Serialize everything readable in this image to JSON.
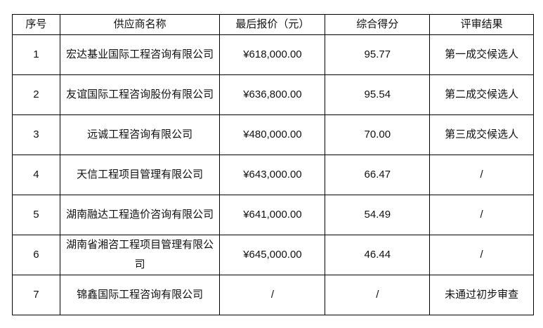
{
  "headers": [
    "序号",
    "供应商名称",
    "最后报价（元）",
    "综合得分",
    "评审结果"
  ],
  "rows": [
    {
      "no": "1",
      "name": "宏达基业国际工程咨询有限公司",
      "price": "¥618,000.00",
      "score": "95.77",
      "result": "第一成交候选人"
    },
    {
      "no": "2",
      "name": "友谊国际工程咨询股份有限公司",
      "price": "¥636,800.00",
      "score": "95.54",
      "result": "第二成交候选人"
    },
    {
      "no": "3",
      "name": "远诚工程咨询有限公司",
      "price": "¥480,000.00",
      "score": "70.00",
      "result": "第三成交候选人"
    },
    {
      "no": "4",
      "name": "天信工程项目管理有限公司",
      "price": "¥643,000.00",
      "score": "66.47",
      "result": "/"
    },
    {
      "no": "5",
      "name": "湖南融达工程造价咨询有限公司",
      "price": "¥641,000.00",
      "score": "54.49",
      "result": "/"
    },
    {
      "no": "6",
      "name": "湖南省湘咨工程项目管理有限公司",
      "price": "¥645,000.00",
      "score": "46.44",
      "result": "/"
    },
    {
      "no": "7",
      "name": "锦鑫国际工程咨询有限公司",
      "price": "/",
      "score": "/",
      "result": "未通过初步审查"
    }
  ]
}
